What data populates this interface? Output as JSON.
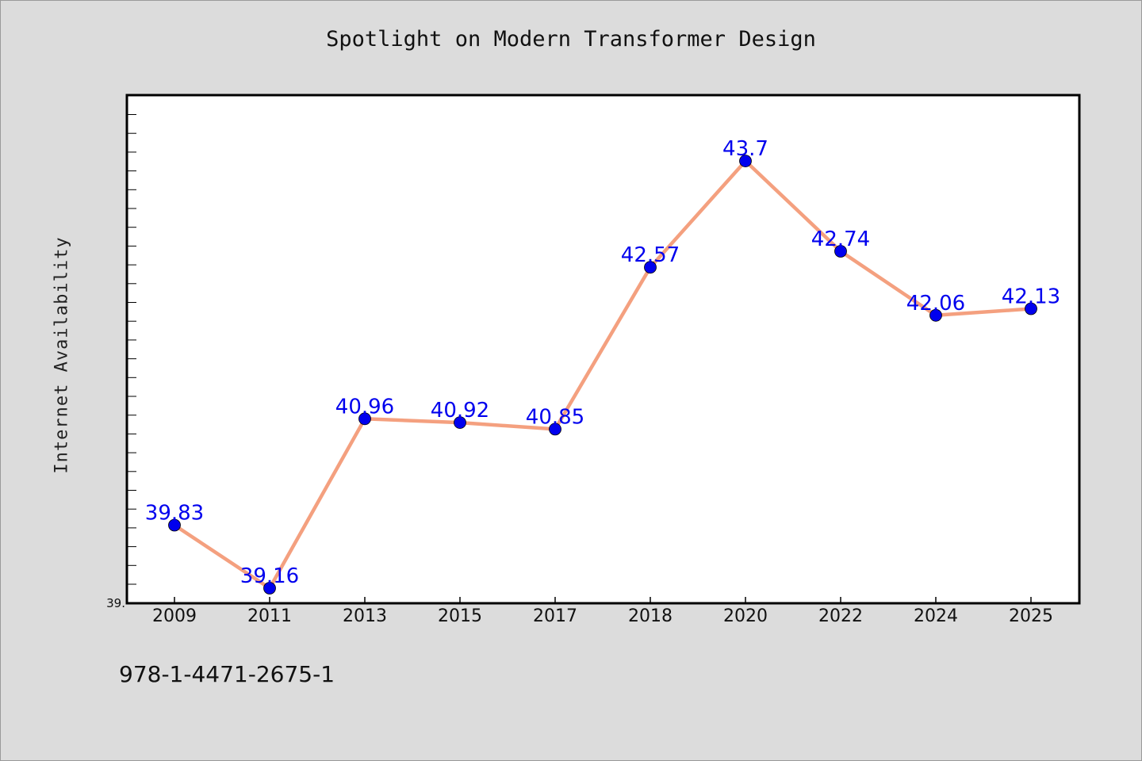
{
  "chart_data": {
    "type": "line",
    "title": "Spotlight on Modern Transformer Design",
    "ylabel": "Internet Availability",
    "xlabel": "",
    "categories": [
      "2009",
      "2011",
      "2013",
      "2015",
      "2017",
      "2018",
      "2020",
      "2022",
      "2024",
      "2025"
    ],
    "series": [
      {
        "values": [
          39.83,
          39.16,
          40.96,
          40.92,
          40.85,
          42.57,
          43.7,
          42.74,
          42.06,
          42.13
        ],
        "data_labels": [
          "39.83",
          "39.16",
          "40.96",
          "40.92",
          "40.85",
          "42.57",
          "43.7",
          "42.74",
          "42.06",
          "42.13"
        ],
        "line_color": "#f4a07f",
        "marker_color": "#0000ee"
      }
    ],
    "y_tick_label": "39.",
    "ylim": [
      39.0,
      44.4
    ],
    "grid": false,
    "legend": "none"
  },
  "footer": {
    "isbn": "978-1-4471-2675-1"
  },
  "colors": {
    "background": "#dcdcdc",
    "plot_area": "#ffffff",
    "line": "#f4a07f",
    "marker": "#0000ee",
    "label": "#0000ee"
  }
}
